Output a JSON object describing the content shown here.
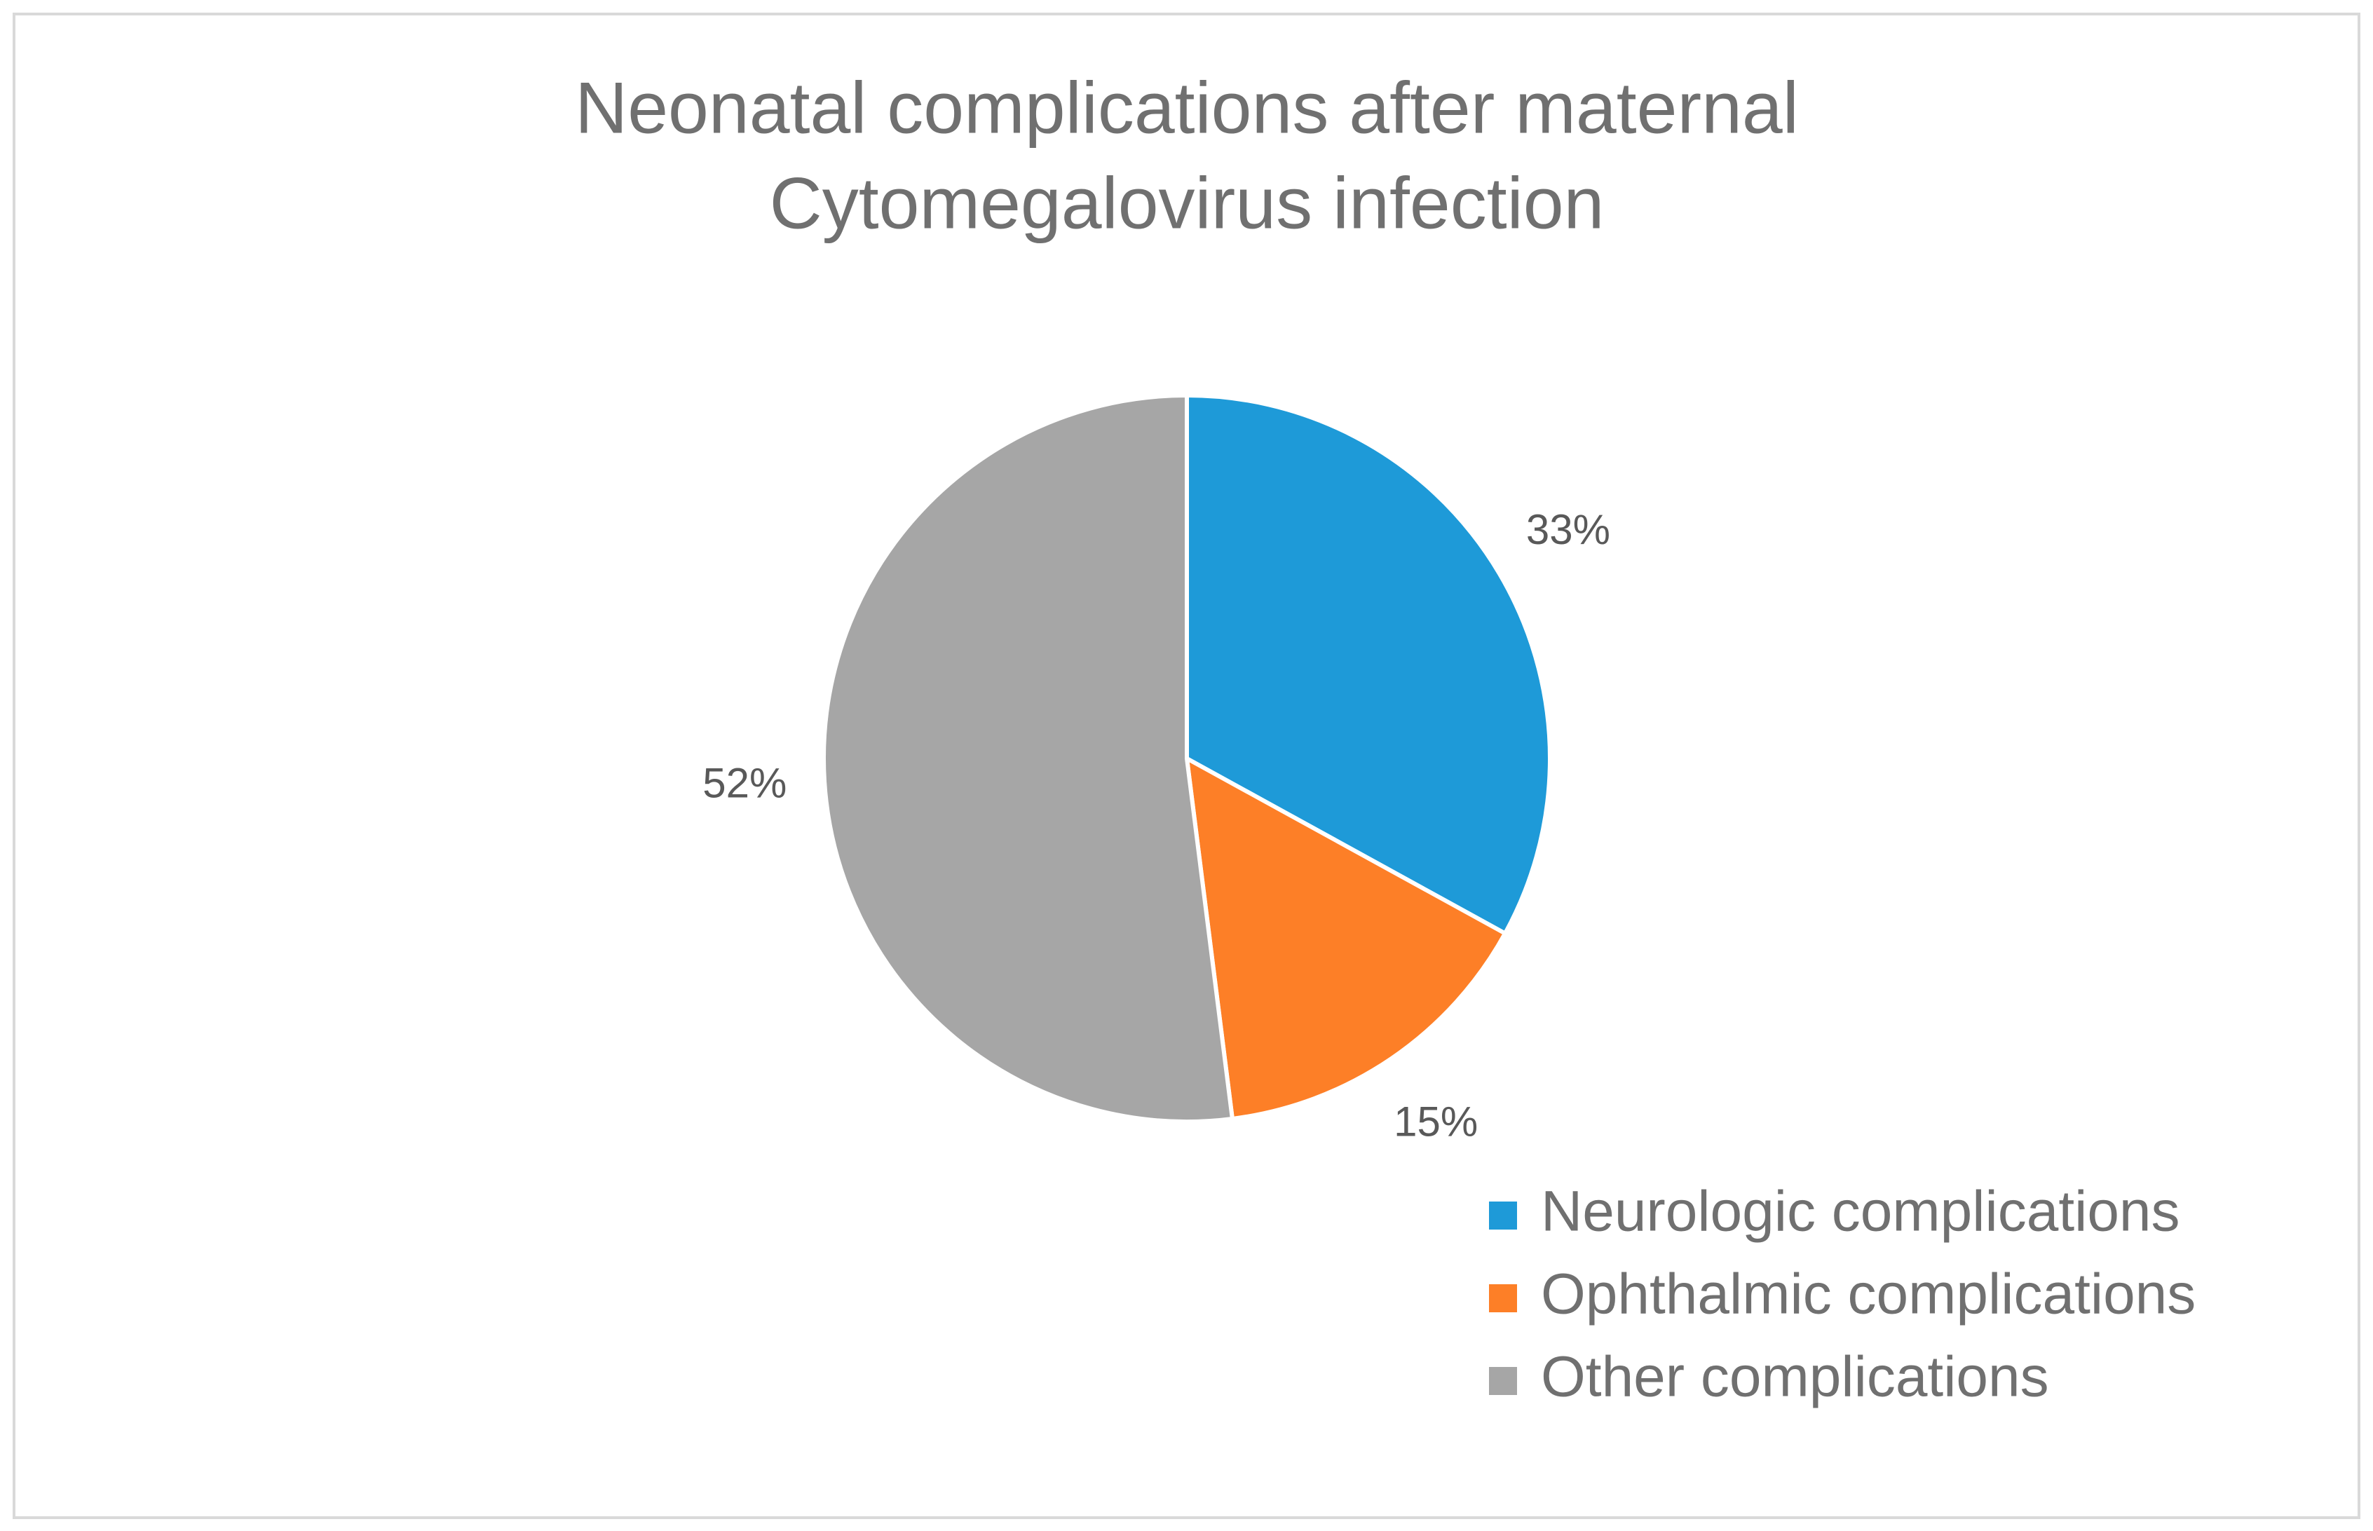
{
  "chart_data": {
    "type": "pie",
    "title": [
      "Neonatal complications after maternal",
      "Cytomegalovirus infection"
    ],
    "categories": [
      "Neurologic complications",
      "Ophthalmic complications",
      "Other complications"
    ],
    "values": [
      33,
      15,
      52
    ],
    "value_labels": [
      "33%",
      "15%",
      "52%"
    ],
    "colors": [
      "#1e9ad8",
      "#fd7f27",
      "#a6a6a6"
    ],
    "legend": "bottom-right"
  }
}
